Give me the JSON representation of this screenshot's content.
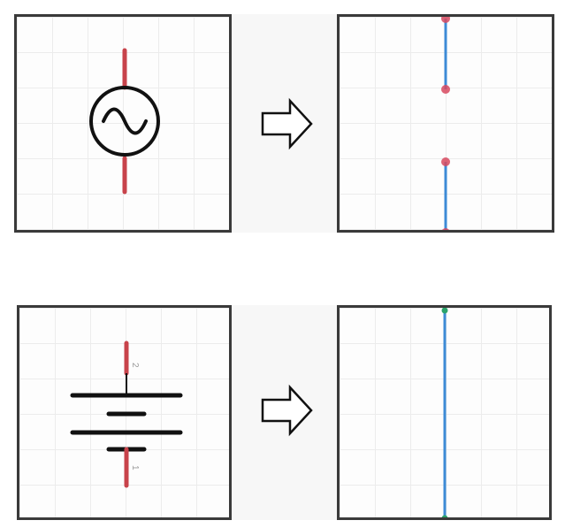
{
  "rows": [
    {
      "left_symbol": "ac-voltage-source-icon",
      "right_symbol": "split-wire-segments",
      "arrow_icon": "right-arrow-icon"
    },
    {
      "left_symbol": "battery-icon",
      "right_symbol": "continuous-wire",
      "arrow_icon": "right-arrow-icon",
      "pin_labels": {
        "top": "2",
        "bottom": "1"
      }
    }
  ],
  "colors": {
    "terminal_red": "#c8434b",
    "wire_blue": "#3d8bd6",
    "node_green": "#2aa36b",
    "outline": "#3a3a3a"
  }
}
